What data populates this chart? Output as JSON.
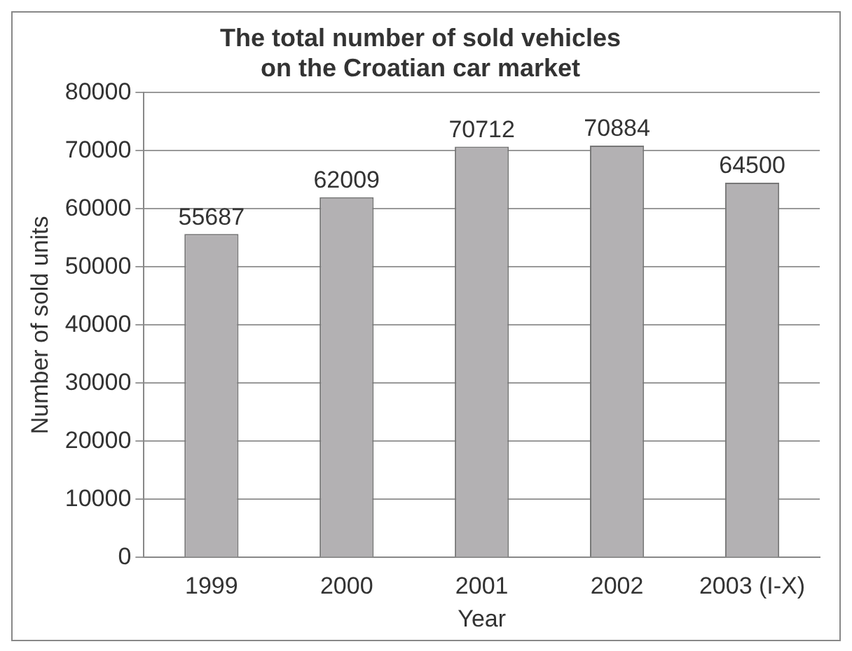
{
  "chart_data": {
    "type": "bar",
    "title": [
      "The total number of sold vehicles",
      "on the Croatian car market"
    ],
    "xlabel": "Year",
    "ylabel": "Number of sold units",
    "categories": [
      "1999",
      "2000",
      "2001",
      "2002",
      "2003 (I-X)"
    ],
    "values": [
      55687,
      62009,
      70712,
      70884,
      64500
    ],
    "color": "#b3b1b3",
    "ylim": [
      0,
      80000
    ],
    "yticks": [
      0,
      10000,
      20000,
      30000,
      40000,
      50000,
      60000,
      70000,
      80000
    ],
    "grid": "y",
    "data_labels": true
  }
}
